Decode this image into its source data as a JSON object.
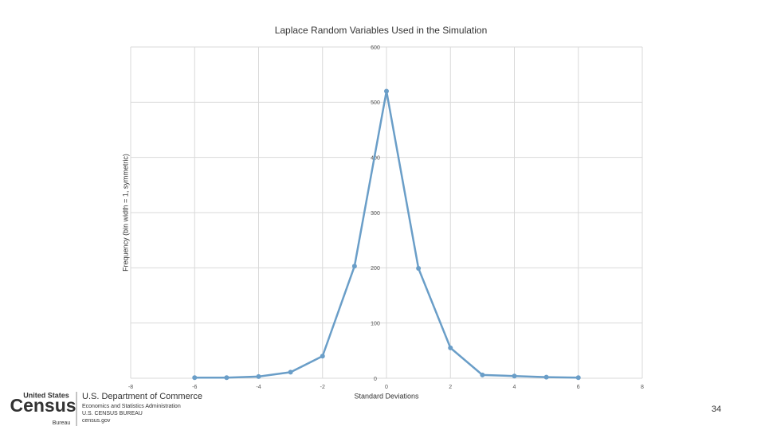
{
  "chart_data": {
    "type": "line",
    "title": "Laplace Random Variables Used in the Simulation",
    "x_label": "Standard Deviations",
    "y_label": "Frequency (bin width = 1, symmetric)",
    "x": [
      -6,
      -5,
      -4,
      -3,
      -2,
      -1,
      0,
      1,
      2,
      3,
      4,
      5,
      6
    ],
    "series": [
      {
        "name": "Frequency",
        "color": "#6a9ec8",
        "values": [
          1,
          1,
          3,
          11,
          40,
          203,
          520,
          199,
          55,
          6,
          4,
          2,
          1
        ]
      }
    ],
    "xlim": [
      -8,
      8
    ],
    "xticks": [
      -8,
      -6,
      -4,
      -2,
      0,
      2,
      4,
      6,
      8
    ],
    "ylim": [
      0,
      600
    ],
    "yticks": [
      0,
      100,
      200,
      300,
      400,
      500,
      600
    ],
    "grid": true
  },
  "footer": {
    "logo_top": "United States",
    "logo_main": "Census",
    "logo_sub": "Bureau",
    "department": "U.S. Department of Commerce",
    "line1": "Economics and Statistics Administration",
    "line2": "U.S. CENSUS BUREAU",
    "line3": "census.gov",
    "page_number": "34"
  }
}
